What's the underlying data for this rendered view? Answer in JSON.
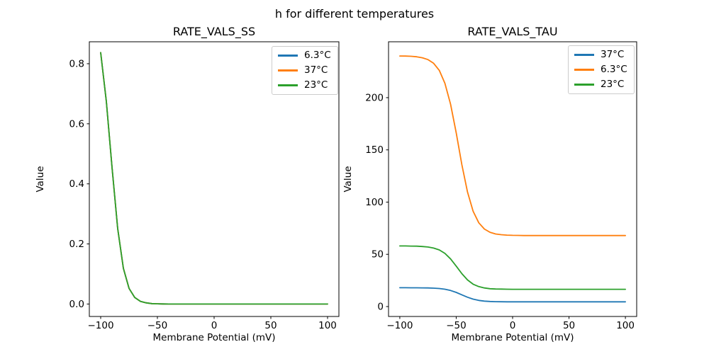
{
  "figure": {
    "suptitle": "h for different temperatures",
    "background": "#ffffff",
    "text_color": "#000000"
  },
  "palette": {
    "blue": "#1f77b4",
    "orange": "#ff7f0e",
    "green": "#2ca02c"
  },
  "chart_data": [
    {
      "type": "line",
      "title": "RATE_VALS_SS",
      "xlabel": "Membrane Potential (mV)",
      "ylabel": "Value",
      "xlim": [
        -110,
        110
      ],
      "ylim": [
        -0.0415,
        0.873
      ],
      "xticks": [
        -100,
        -50,
        0,
        50,
        100
      ],
      "xtick_labels": [
        "−100",
        "−50",
        "0",
        "50",
        "100"
      ],
      "yticks": [
        0.0,
        0.2,
        0.4,
        0.6,
        0.8
      ],
      "ytick_labels": [
        "0.0",
        "0.2",
        "0.4",
        "0.6",
        "0.8"
      ],
      "grid": false,
      "legend_position": "upper right",
      "x": [
        -100,
        -95,
        -90,
        -85,
        -80,
        -75,
        -70,
        -65,
        -60,
        -55,
        -50,
        -45,
        -40,
        -35,
        -30,
        -25,
        -20,
        -15,
        -10,
        -5,
        0,
        5,
        10,
        15,
        20,
        25,
        30,
        35,
        40,
        45,
        50,
        55,
        60,
        65,
        70,
        75,
        80,
        85,
        90,
        95,
        100
      ],
      "series": [
        {
          "name": "6.3°C",
          "color": "#1f77b4",
          "values": [
            0.837,
            0.674,
            0.455,
            0.251,
            0.119,
            0.052,
            0.022,
            0.009,
            0.004,
            0.0015,
            0.0006,
            0.0002,
            0.0001,
            0,
            0,
            0,
            0,
            0,
            0,
            0,
            0,
            0,
            0,
            0,
            0,
            0,
            0,
            0,
            0,
            0,
            0,
            0,
            0,
            0,
            0,
            0,
            0,
            0,
            0,
            0,
            0
          ]
        },
        {
          "name": "37°C",
          "color": "#ff7f0e",
          "values": [
            0.837,
            0.674,
            0.455,
            0.251,
            0.119,
            0.052,
            0.022,
            0.009,
            0.004,
            0.0015,
            0.0006,
            0.0002,
            0.0001,
            0,
            0,
            0,
            0,
            0,
            0,
            0,
            0,
            0,
            0,
            0,
            0,
            0,
            0,
            0,
            0,
            0,
            0,
            0,
            0,
            0,
            0,
            0,
            0,
            0,
            0,
            0,
            0
          ]
        },
        {
          "name": "23°C",
          "color": "#2ca02c",
          "values": [
            0.837,
            0.674,
            0.455,
            0.251,
            0.119,
            0.052,
            0.022,
            0.009,
            0.004,
            0.0015,
            0.0006,
            0.0002,
            0.0001,
            0,
            0,
            0,
            0,
            0,
            0,
            0,
            0,
            0,
            0,
            0,
            0,
            0,
            0,
            0,
            0,
            0,
            0,
            0,
            0,
            0,
            0,
            0,
            0,
            0,
            0,
            0,
            0
          ]
        }
      ]
    },
    {
      "type": "line",
      "title": "RATE_VALS_TAU",
      "xlabel": "Membrane Potential (mV)",
      "ylabel": "Value",
      "xlim": [
        -110,
        110
      ],
      "ylim": [
        -9.5,
        253.5
      ],
      "xticks": [
        -100,
        -50,
        0,
        50,
        100
      ],
      "xtick_labels": [
        "−100",
        "−50",
        "0",
        "50",
        "100"
      ],
      "yticks": [
        0,
        50,
        100,
        150,
        200
      ],
      "ytick_labels": [
        "0",
        "50",
        "100",
        "150",
        "200"
      ],
      "grid": false,
      "legend_position": "upper right",
      "x": [
        -100,
        -95,
        -90,
        -85,
        -80,
        -75,
        -70,
        -65,
        -60,
        -55,
        -50,
        -45,
        -40,
        -35,
        -30,
        -25,
        -20,
        -15,
        -10,
        -5,
        0,
        5,
        10,
        15,
        20,
        25,
        30,
        35,
        40,
        45,
        50,
        55,
        60,
        65,
        70,
        75,
        80,
        85,
        90,
        95,
        100
      ],
      "series": [
        {
          "name": "37°C",
          "color": "#1f77b4",
          "values": [
            18,
            18,
            17.97,
            17.96,
            17.91,
            17.82,
            17.63,
            17.27,
            16.58,
            15.39,
            13.56,
            11.25,
            8.94,
            7.11,
            5.92,
            5.23,
            4.88,
            4.68,
            4.59,
            4.55,
            4.52,
            4.51,
            4.5,
            4.5,
            4.5,
            4.5,
            4.5,
            4.5,
            4.5,
            4.5,
            4.5,
            4.5,
            4.5,
            4.5,
            4.5,
            4.5,
            4.5,
            4.5,
            4.5,
            4.5,
            4.5
          ]
        },
        {
          "name": "6.3°C",
          "color": "#ff7f0e",
          "values": [
            239.9,
            239.8,
            239.6,
            239.1,
            238.2,
            236.4,
            232.9,
            226.1,
            213.8,
            193.7,
            166.2,
            135.9,
            109.6,
            91.2,
            80.2,
            74.2,
            71.1,
            69.5,
            68.8,
            68.4,
            68.2,
            68.1,
            68,
            68,
            68,
            68,
            68,
            68,
            68,
            68,
            68,
            68,
            68,
            68,
            68,
            68,
            68,
            68,
            68,
            68,
            68
          ]
        },
        {
          "name": "23°C",
          "color": "#2ca02c",
          "values": [
            58,
            58,
            57.9,
            57.8,
            57.5,
            57,
            56,
            54.2,
            50.9,
            45.6,
            38.7,
            31.5,
            25.5,
            21.4,
            19.1,
            17.8,
            17.1,
            16.8,
            16.7,
            16.6,
            16.5,
            16.5,
            16.5,
            16.5,
            16.5,
            16.5,
            16.5,
            16.5,
            16.5,
            16.5,
            16.5,
            16.5,
            16.5,
            16.5,
            16.5,
            16.5,
            16.5,
            16.5,
            16.5,
            16.5,
            16.5
          ]
        }
      ]
    }
  ]
}
